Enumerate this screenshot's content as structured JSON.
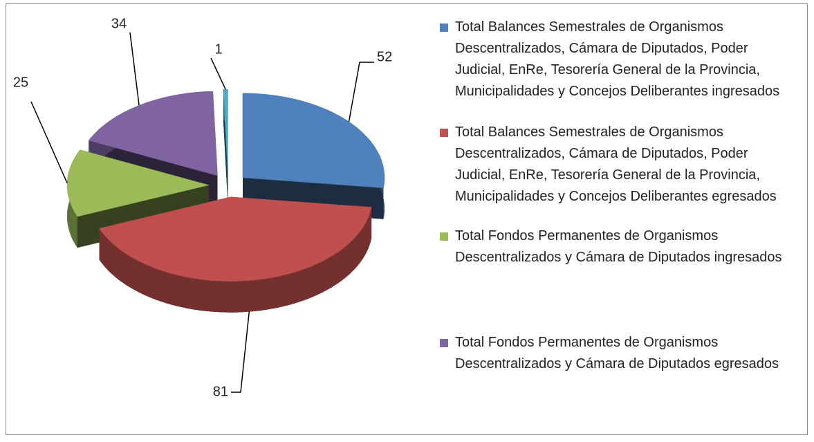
{
  "chart_data": {
    "type": "pie3d",
    "categories": [
      "Total Balances Semestrales de Organismos Descentralizados, Cámara de Diputados, Poder Judicial, EnRe, Tesorería General de la Provincia, Municipalidades y Concejos Deliberantes ingresados",
      "Total Balances Semestrales de Organismos Descentralizados, Cámara de Diputados, Poder Judicial, EnRe, Tesorería General de la Provincia, Municipalidades y Concejos Deliberantes egresados",
      "Total Fondos Permanentes de Organismos Descentralizados y Cámara de Diputados ingresados",
      "Total Fondos Permanentes de Organismos Descentralizados y Cámara de Diputados egresados",
      null
    ],
    "values": [
      52,
      81,
      25,
      34,
      1
    ],
    "colors": [
      "#4f81bd",
      "#c0504d",
      "#9bbb59",
      "#8064a2",
      "#4bacc6"
    ],
    "legend": "right"
  }
}
